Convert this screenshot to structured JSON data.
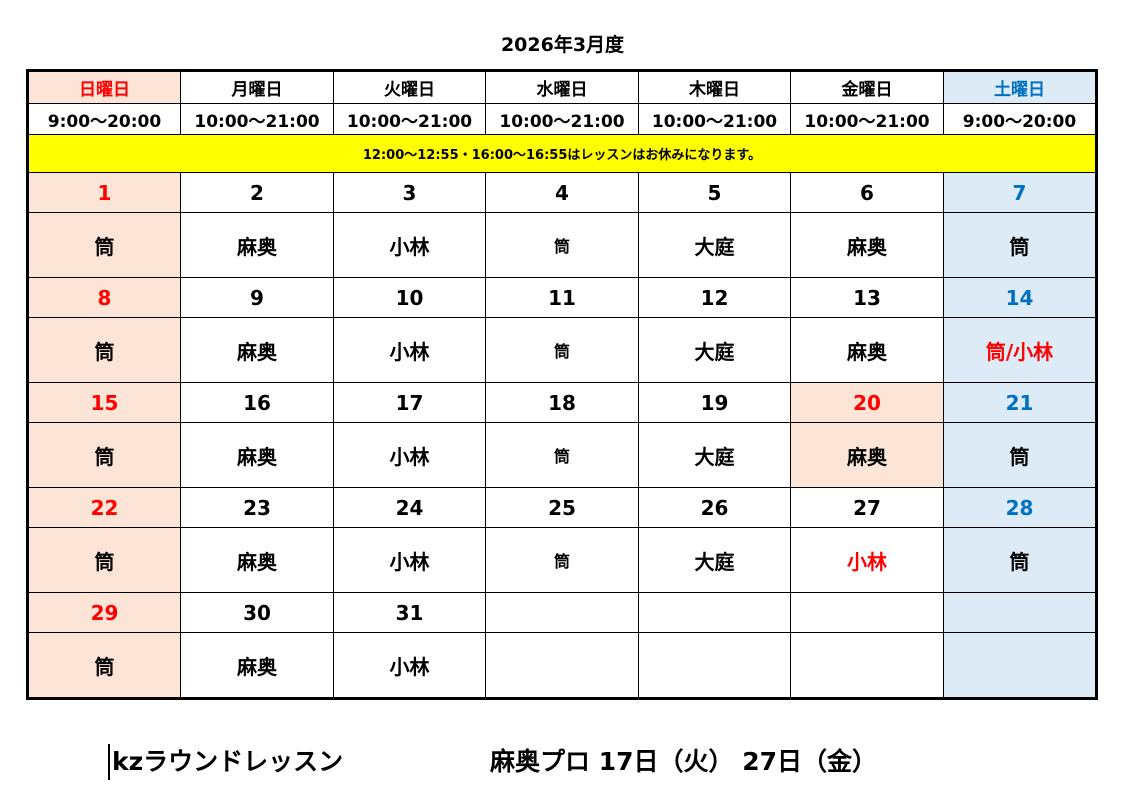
{
  "title": "2026年3月度",
  "weekdays": [
    "日曜日",
    "月曜日",
    "火曜日",
    "水曜日",
    "木曜日",
    "金曜日",
    "土曜日"
  ],
  "hours": [
    "9:00〜20:00",
    "10:00〜21:00",
    "10:00〜21:00",
    "10:00〜21:00",
    "10:00〜21:00",
    "10:00〜21:00",
    "9:00〜20:00"
  ],
  "notice": "12:00〜12:55・16:00〜16:55はレッスンはお休みになります。",
  "weeks": [
    {
      "days": [
        "1",
        "2",
        "3",
        "4",
        "5",
        "6",
        "7"
      ],
      "instructors": [
        "筒",
        "麻奥",
        "小林",
        "筒",
        "大庭",
        "麻奥",
        "筒"
      ]
    },
    {
      "days": [
        "8",
        "9",
        "10",
        "11",
        "12",
        "13",
        "14"
      ],
      "instructors": [
        "筒",
        "麻奥",
        "小林",
        "筒",
        "大庭",
        "麻奥",
        "筒/小林"
      ]
    },
    {
      "days": [
        "15",
        "16",
        "17",
        "18",
        "19",
        "20",
        "21"
      ],
      "instructors": [
        "筒",
        "麻奥",
        "小林",
        "筒",
        "大庭",
        "麻奥",
        "筒"
      ]
    },
    {
      "days": [
        "22",
        "23",
        "24",
        "25",
        "26",
        "27",
        "28"
      ],
      "instructors": [
        "筒",
        "麻奥",
        "小林",
        "筒",
        "大庭",
        "小林",
        "筒"
      ]
    },
    {
      "days": [
        "29",
        "30",
        "31",
        "",
        "",
        "",
        ""
      ],
      "instructors": [
        "筒",
        "麻奥",
        "小林",
        "",
        "",
        "",
        ""
      ]
    }
  ],
  "footer": {
    "left": "kzラウンドレッスン",
    "right": "麻奥プロ 17日（火） 27日（金）"
  },
  "colors": {
    "sunday_bg": "#fce4d6",
    "saturday_bg": "#ddebf7",
    "notice_bg": "#ffff00",
    "red_text": "#ff0000",
    "blue_text": "#0070c0"
  }
}
